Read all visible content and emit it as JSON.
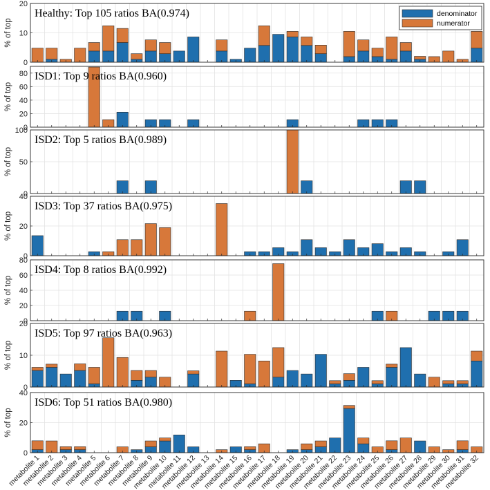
{
  "chart_data": {
    "type": "bar",
    "stacked": true,
    "categories": [
      "metabolite 1",
      "metabolite 2",
      "metabolite 3",
      "metabolite 4",
      "metabolite 5",
      "metabolite 6",
      "metabolite 7",
      "metabolite 8",
      "metabolite 9",
      "metabolite 10",
      "metabolite 11",
      "metabolite 12",
      "metabolite 13",
      "metabolite 14",
      "metabolite 15",
      "metabolite 16",
      "metabolite 17",
      "metabolite 18",
      "metabolite 19",
      "metabolite 20",
      "metabolite 21",
      "metabolite 22",
      "metabolite 23",
      "metabolite 24",
      "metabolite 25",
      "metabolite 26",
      "metabolite 27",
      "metabolite 28",
      "metabolite 29",
      "metabolite 30",
      "metabolite 31",
      "metabolite 32"
    ],
    "ylabel": "% of top",
    "legend": {
      "position": "top-right",
      "entries": [
        "denominator",
        "numerator"
      ]
    },
    "colors": {
      "denominator": "#1f6fae",
      "numerator": "#d7783a",
      "edge": "#2a2a2a",
      "grid": "#e3e3e3"
    },
    "panels": [
      {
        "title": "Healthy:  Top 105 ratios BA(0.974)",
        "ylim": [
          0,
          20
        ],
        "yticks": [
          0,
          10,
          20
        ],
        "denominator": [
          0,
          1,
          0,
          0,
          3.8,
          3.8,
          6.7,
          1,
          3.8,
          2.9,
          3.8,
          8.6,
          0,
          3.8,
          1,
          4.8,
          5.7,
          9.5,
          8.6,
          5.7,
          2.9,
          0,
          1.9,
          3.8,
          1.9,
          1,
          3.8,
          1,
          0,
          0,
          0,
          4.8
        ],
        "numerator": [
          4.8,
          3.8,
          1,
          4.8,
          2.9,
          8.6,
          4.8,
          1.9,
          3.8,
          3.8,
          0,
          0,
          0,
          3.8,
          0,
          0,
          6.7,
          0,
          1.9,
          2.9,
          2.9,
          0,
          8.6,
          3.8,
          2.9,
          7.6,
          2.9,
          1,
          1.9,
          3.8,
          1,
          5.7
        ]
      },
      {
        "title": "ISD1:  Top 9 ratios BA(0.960)",
        "ylim": [
          0,
          90
        ],
        "yticks": [
          0,
          20,
          40,
          60,
          80
        ],
        "denominator": [
          0,
          0,
          0,
          0,
          0,
          0,
          22.2,
          0,
          11.1,
          11.1,
          0,
          11.1,
          0,
          0,
          0,
          0,
          0,
          0,
          11.1,
          0,
          0,
          0,
          0,
          11.1,
          11.1,
          11.1,
          0,
          0,
          0,
          0,
          0,
          0
        ],
        "numerator": [
          0,
          0,
          0,
          0,
          88.9,
          11.1,
          0,
          0,
          0,
          0,
          0,
          0,
          0,
          0,
          0,
          0,
          0,
          0,
          0,
          0,
          0,
          0,
          0,
          0,
          0,
          0,
          0,
          0,
          0,
          0,
          0,
          0
        ]
      },
      {
        "title": "ISD2:  Top 5 ratios BA(0.989)",
        "ylim": [
          0,
          100
        ],
        "yticks": [
          0,
          50,
          100
        ],
        "denominator": [
          0,
          0,
          0,
          0,
          0,
          0,
          20,
          0,
          20,
          0,
          0,
          0,
          0,
          0,
          0,
          0,
          0,
          0,
          0,
          20,
          0,
          0,
          0,
          0,
          0,
          0,
          20,
          20,
          0,
          0,
          0,
          0
        ],
        "numerator": [
          0,
          0,
          0,
          0,
          0,
          0,
          0,
          0,
          0,
          0,
          0,
          0,
          0,
          0,
          0,
          0,
          0,
          0,
          100,
          0,
          0,
          0,
          0,
          0,
          0,
          0,
          0,
          0,
          0,
          0,
          0,
          0
        ]
      },
      {
        "title": "ISD3:  Top 37 ratios BA(0.975)",
        "ylim": [
          0,
          40
        ],
        "yticks": [
          0,
          20,
          40
        ],
        "denominator": [
          13.5,
          0,
          0,
          0,
          2.7,
          0,
          0,
          0,
          0,
          0,
          0,
          0,
          0,
          0,
          0,
          2.7,
          2.7,
          5.4,
          2.7,
          10.8,
          5.4,
          2.7,
          10.8,
          5.4,
          8.1,
          2.7,
          5.4,
          2.7,
          0,
          2.7,
          10.8,
          0
        ],
        "numerator": [
          0,
          0,
          0,
          0,
          0,
          2.7,
          10.8,
          10.8,
          21.6,
          18.9,
          0,
          0,
          0,
          35.1,
          0,
          0,
          0,
          0,
          0,
          0,
          0,
          0,
          0,
          0,
          0,
          0,
          0,
          0,
          0,
          0,
          0,
          0
        ]
      },
      {
        "title": "ISD4:  Top 8 ratios BA(0.992)",
        "ylim": [
          0,
          80
        ],
        "yticks": [
          0,
          20,
          40,
          60,
          80
        ],
        "denominator": [
          0,
          0,
          0,
          0,
          0,
          0,
          12.5,
          12.5,
          0,
          12.5,
          0,
          0,
          0,
          0,
          0,
          0,
          0,
          0,
          0,
          0,
          0,
          0,
          0,
          0,
          12.5,
          0,
          0,
          0,
          12.5,
          12.5,
          12.5,
          0
        ],
        "numerator": [
          0,
          0,
          0,
          0,
          0,
          0,
          0,
          0,
          0,
          0,
          0,
          0,
          0,
          0,
          0,
          12.5,
          0,
          75,
          0,
          0,
          0,
          0,
          0,
          0,
          0,
          12.5,
          0,
          0,
          0,
          0,
          0,
          0
        ]
      },
      {
        "title": "ISD5:  Top 97 ratios BA(0.963)",
        "ylim": [
          0,
          20
        ],
        "yticks": [
          0,
          10,
          20
        ],
        "denominator": [
          5.2,
          6.2,
          4.1,
          5.2,
          1,
          0,
          0,
          2.1,
          3.1,
          0,
          0,
          4.1,
          0,
          0,
          2.1,
          1,
          0,
          3.1,
          5.2,
          4.1,
          10.3,
          1,
          2.1,
          6.2,
          1,
          6.2,
          12.4,
          4.1,
          0,
          1,
          1,
          8.2
        ],
        "numerator": [
          1,
          1,
          0,
          2.1,
          5.2,
          15.5,
          9.3,
          3.1,
          2.1,
          3.1,
          0,
          1,
          0,
          11.3,
          0,
          9.3,
          8.2,
          9.3,
          0,
          0,
          0,
          1,
          2.1,
          0,
          1,
          1,
          0,
          0,
          3.1,
          1,
          1,
          3.1
        ]
      },
      {
        "title": "ISD6:  Top 51 ratios BA(0.980)",
        "ylim": [
          0,
          40
        ],
        "yticks": [
          0,
          20,
          40
        ],
        "denominator": [
          2,
          0,
          2,
          2,
          0,
          0,
          0,
          2,
          3.9,
          7.8,
          11.8,
          3.9,
          0,
          0,
          3.9,
          2,
          0,
          0,
          2,
          2,
          3.9,
          9.8,
          29.4,
          5.9,
          0,
          2,
          0,
          7.8,
          0,
          0,
          2,
          0
        ],
        "numerator": [
          5.9,
          7.8,
          2,
          2,
          0,
          0,
          3.9,
          0,
          3.9,
          2,
          0,
          0,
          0,
          2,
          0,
          2,
          5.9,
          0,
          0,
          3.9,
          3.9,
          0,
          2,
          3.9,
          3.9,
          5.9,
          9.8,
          0,
          3.9,
          2,
          5.9,
          3.9
        ]
      }
    ]
  }
}
